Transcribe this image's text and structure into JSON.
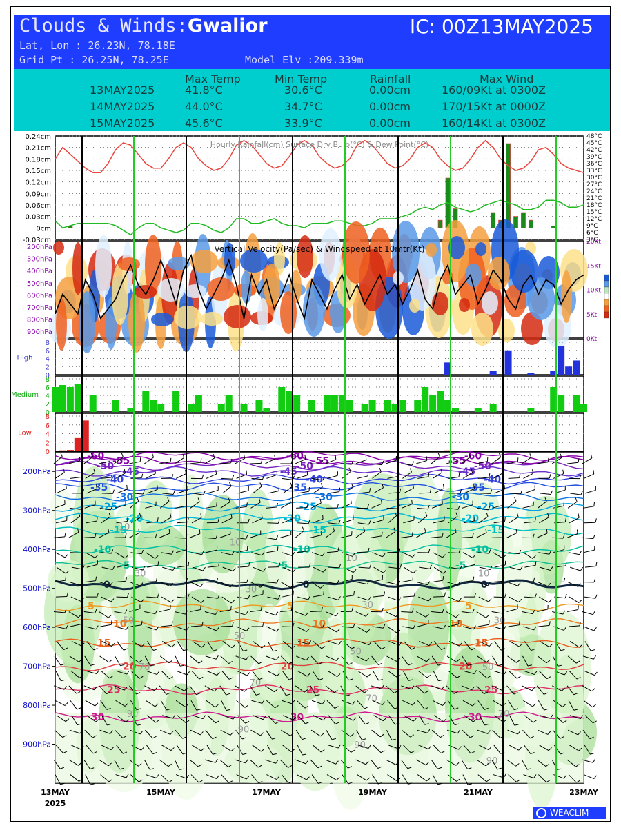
{
  "header": {
    "title_prefix": "Clouds & Winds:",
    "station": "Gwalior",
    "ic": "IC: 00Z13MAY2025",
    "latlon": "Lat, Lon : 26.23N, 78.18E",
    "gridpt": "Grid Pt  : 26.25N, 78.25E",
    "elev": "Model Elv :209.339m",
    "background": "#1f3dff"
  },
  "summary": {
    "columns": [
      "Max Temp",
      "Min Temp",
      "Rainfall",
      "Max Wind"
    ],
    "rows": [
      {
        "date": "13MAY2025",
        "max": "41.8°C",
        "min": "30.6°C",
        "rain": "0.00cm",
        "wind": "160/09Kt at 0300Z"
      },
      {
        "date": "14MAY2025",
        "max": "44.0°C",
        "min": "34.7°C",
        "rain": "0.00cm",
        "wind": "170/15Kt at 0000Z"
      },
      {
        "date": "15MAY2025",
        "max": "45.6°C",
        "min": "33.9°C",
        "rain": "0.00cm",
        "wind": "160/14Kt at 0300Z"
      }
    ],
    "background": "#00cdcd"
  },
  "logo": "WEACLIM",
  "chart_data": [
    {
      "type": "line",
      "title": "Hourly Rainfall(cm)  Surface Dry Bulb(°C)  & Dew Point(°C)",
      "left_ticks": [
        "0.24cm",
        "0.21cm",
        "0.18cm",
        "0.15cm",
        "0.12cm",
        "0.09cm",
        "0.06cm",
        "0.03cm",
        "0cm",
        "-0.03cm"
      ],
      "right_ticks": [
        "48°C",
        "45°C",
        "42°C",
        "39°C",
        "36°C",
        "33°C",
        "30°C",
        "27°C",
        "24°C",
        "21°C",
        "18°C",
        "15°C",
        "12°C",
        "9°C",
        "6°C",
        "3°C"
      ],
      "ylim_rain": [
        -0.03,
        0.24
      ],
      "ylim_temp": [
        3,
        48
      ],
      "x_labels": [
        "13MAY",
        "15MAY",
        "17MAY",
        "19MAY",
        "21MAY",
        "23MAY"
      ],
      "x_year": "2025",
      "series": [
        {
          "name": "Surface Dry Bulb(°C)",
          "color": "#e8453c",
          "values": [
            38,
            43,
            40,
            37,
            34,
            32,
            32,
            36,
            42,
            45,
            44,
            40,
            36,
            34,
            34,
            38,
            43,
            45,
            43,
            38,
            35,
            33,
            34,
            38,
            44,
            46,
            44,
            40,
            36,
            34,
            35,
            39,
            44,
            46,
            44,
            39,
            36,
            34,
            35,
            38,
            44,
            46,
            44,
            40,
            36,
            34,
            35,
            38,
            43,
            45,
            43,
            38,
            35,
            33,
            34,
            38,
            43,
            46,
            43,
            38,
            35,
            33,
            34,
            37,
            42,
            43,
            40,
            36,
            34,
            33,
            32
          ]
        },
        {
          "name": "Dew Point(°C)",
          "color": "#22bb22",
          "values": [
            11,
            8,
            9,
            10,
            10,
            10,
            10,
            10,
            9,
            7,
            5,
            8,
            10,
            10,
            8,
            7,
            6,
            7,
            10,
            10,
            9,
            7,
            6,
            8,
            12,
            12,
            10,
            10,
            11,
            12,
            10,
            9,
            9,
            8,
            10,
            10,
            10,
            11,
            11,
            10,
            9,
            9,
            10,
            12,
            12,
            12,
            13,
            14,
            16,
            17,
            16,
            18,
            19,
            17,
            16,
            15,
            16,
            18,
            19,
            20,
            19,
            18,
            16,
            16,
            17,
            20,
            20,
            19,
            17,
            17,
            18
          ]
        },
        {
          "name": "Hourly Rainfall(cm)",
          "color": "#1a8a1a",
          "values": [
            0,
            0,
            0.005,
            0,
            0,
            0,
            0,
            0,
            0,
            0,
            0,
            0,
            0,
            0,
            0,
            0,
            0,
            0,
            0,
            0,
            0,
            0,
            0,
            0,
            0,
            0,
            0,
            0,
            0,
            0,
            0,
            0,
            0,
            0,
            0,
            0,
            0,
            0,
            0,
            0,
            0,
            0,
            0,
            0,
            0,
            0,
            0,
            0,
            0,
            0,
            0,
            0.02,
            0.13,
            0.05,
            0,
            0,
            0,
            0,
            0.04,
            0.02,
            0.22,
            0.03,
            0.04,
            0.02,
            0,
            0,
            0.005,
            0,
            0,
            0,
            0
          ]
        }
      ]
    },
    {
      "type": "heatmap",
      "title": "Vertical Velocity(Pa/sec) & Windspeed at 10mtr(Kt)",
      "y_ticks": [
        "200hPa",
        "300hPa",
        "400hPa",
        "500hPa",
        "600hPa",
        "700hPa",
        "800hPa",
        "900hPa"
      ],
      "right_ticks": [
        "20Kt",
        "15Kt",
        "10Kt",
        "5Kt",
        "0Kt"
      ],
      "ylim_wind": [
        0,
        20
      ],
      "series": [
        {
          "name": "Windspeed at 10mtr(Kt)",
          "color": "#000000",
          "values": [
            5,
            9,
            7,
            5,
            12,
            9,
            4,
            6,
            8,
            12,
            15,
            11,
            9,
            12,
            16,
            12,
            7,
            14,
            17,
            10,
            6,
            9,
            12,
            16,
            11,
            4,
            13,
            9,
            12,
            6,
            9,
            13,
            8,
            4,
            12,
            9,
            6,
            10,
            13,
            8,
            11,
            7,
            10,
            13,
            9,
            11,
            7,
            10,
            14,
            8,
            6,
            12,
            15,
            9,
            11,
            13,
            7,
            10,
            14,
            12,
            8,
            6,
            11,
            13,
            9,
            12,
            11,
            7,
            10,
            12,
            13
          ]
        }
      ]
    },
    {
      "type": "bar",
      "title": "High",
      "y_ticks": [
        "8",
        "6",
        "4",
        "2",
        "0"
      ],
      "ylim": [
        0,
        8
      ],
      "series": [
        {
          "name": "High",
          "color": "#2233dd",
          "values": [
            0,
            0,
            0,
            0,
            0,
            0,
            0,
            0,
            0,
            0,
            0,
            0,
            0,
            0,
            0,
            0,
            0,
            0,
            0,
            0,
            0,
            0,
            0,
            0,
            0,
            0,
            0,
            0,
            0,
            0,
            0,
            0,
            0,
            0,
            0,
            0,
            0,
            0,
            0,
            0,
            0,
            0,
            0,
            0,
            0,
            0,
            0,
            0,
            0,
            0,
            0,
            0,
            3,
            0,
            0,
            0,
            0,
            0,
            1,
            0,
            6,
            0,
            0,
            0.5,
            0,
            0,
            1,
            7,
            2,
            3.5,
            0
          ]
        }
      ]
    },
    {
      "type": "bar",
      "title": "Medium",
      "y_ticks": [
        "8",
        "6",
        "4",
        "2",
        "0"
      ],
      "ylim": [
        0,
        8
      ],
      "series": [
        {
          "name": "Medium",
          "color": "#11cc11",
          "values": [
            6,
            6.5,
            6,
            6.8,
            0,
            4,
            0,
            0,
            3,
            0,
            1,
            0,
            5,
            3,
            2,
            0,
            5,
            0,
            2,
            4,
            0,
            0,
            2,
            4,
            0,
            2,
            0,
            3,
            1,
            0,
            6,
            5,
            4,
            0,
            3,
            0,
            4,
            4,
            4,
            3,
            0,
            2,
            3,
            0,
            3,
            2,
            3,
            0,
            3,
            6,
            4,
            5,
            3,
            1,
            0,
            0,
            1,
            0,
            2,
            0,
            0,
            0,
            0,
            1,
            0,
            0,
            6,
            4,
            0,
            4,
            2
          ]
        }
      ]
    },
    {
      "type": "bar",
      "title": "Low",
      "y_ticks": [
        "8",
        "6",
        "4",
        "2",
        "0"
      ],
      "ylim": [
        0,
        8
      ],
      "series": [
        {
          "name": "Low",
          "color": "#dd2222",
          "values": [
            0,
            0.2,
            0.3,
            3,
            7,
            0,
            0,
            0,
            0,
            0,
            0,
            0,
            0,
            0,
            0,
            0,
            0,
            0,
            0,
            0,
            0,
            0,
            0,
            0,
            0,
            0,
            0,
            0,
            0,
            0,
            0,
            0,
            0,
            0,
            0,
            0,
            0,
            0,
            0,
            0,
            0,
            0,
            0,
            0,
            0,
            0,
            0,
            0,
            0,
            0,
            0,
            0,
            0.2,
            0,
            0,
            0,
            0,
            0,
            0,
            0,
            0,
            0,
            0,
            0,
            0,
            0,
            0,
            0,
            0,
            0,
            0
          ]
        }
      ]
    },
    {
      "type": "line",
      "title": "",
      "y_ticks": [
        "200hPa",
        "300hPa",
        "400hPa",
        "500hPa",
        "600hPa",
        "700hPa",
        "800hPa",
        "900hPa"
      ],
      "ylim": [
        1000,
        150
      ],
      "isotherm_labels": [
        "-60",
        "-55",
        "-50",
        "-45",
        "-40",
        "-35",
        "-30",
        "-25",
        "-20",
        "-15",
        "-10",
        "-5",
        "0",
        "5",
        "10",
        "15",
        "20",
        "25",
        "30"
      ],
      "humidity_labels": [
        "10",
        "30",
        "50",
        "70",
        "90"
      ],
      "series": [
        {
          "name": "-60",
          "color": "#8800aa",
          "level_hPa": 160
        },
        {
          "name": "-55",
          "color": "#8800aa",
          "level_hPa": 172
        },
        {
          "name": "-50",
          "color": "#7a1fbb",
          "level_hPa": 185
        },
        {
          "name": "-45",
          "color": "#6a30cc",
          "level_hPa": 200
        },
        {
          "name": "-40",
          "color": "#3040dd",
          "level_hPa": 220
        },
        {
          "name": "-35",
          "color": "#2050e0",
          "level_hPa": 240
        },
        {
          "name": "-30",
          "color": "#1070e0",
          "level_hPa": 265
        },
        {
          "name": "-25",
          "color": "#00a0e0",
          "level_hPa": 290
        },
        {
          "name": "-20",
          "color": "#00b8d8",
          "level_hPa": 320
        },
        {
          "name": "-15",
          "color": "#00c0c0",
          "level_hPa": 350
        },
        {
          "name": "-10",
          "color": "#00c0a0",
          "level_hPa": 400
        },
        {
          "name": "-5",
          "color": "#10c090",
          "level_hPa": 440
        },
        {
          "name": "0",
          "color": "#102840",
          "level_hPa": 490
        },
        {
          "name": "5",
          "color": "#ee9a20",
          "level_hPa": 545
        },
        {
          "name": "10",
          "color": "#ee7a20",
          "level_hPa": 590
        },
        {
          "name": "15",
          "color": "#e86020",
          "level_hPa": 640
        },
        {
          "name": "20",
          "color": "#e04040",
          "level_hPa": 700
        },
        {
          "name": "25",
          "color": "#e0306a",
          "level_hPa": 760
        },
        {
          "name": "30",
          "color": "#d01890",
          "level_hPa": 830
        }
      ]
    }
  ]
}
